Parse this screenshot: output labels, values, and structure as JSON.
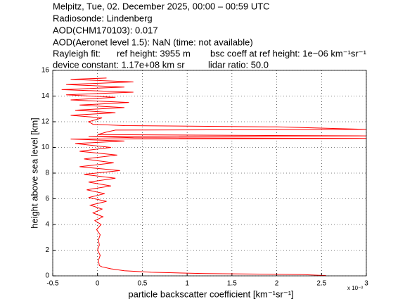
{
  "chart_data": {
    "type": "line",
    "header_lines": [
      "Melpitz, Tue, 02. December 2025, 00:00 – 00:59 UTC",
      "Radiosonde: Lindenberg",
      "AOD(CHM170103): 0.017",
      "AOD(Aeronet level 1.5): NaN   (time: not available)"
    ],
    "rayleigh_line": [
      "Rayleigh fit:",
      "ref height: 3955 m",
      "bsc coeff at ref height: 1e−06 km⁻¹sr⁻¹"
    ],
    "device_line": [
      "device constant: 1.17e+08 km sr",
      "lidar ratio: 50.0"
    ],
    "xlabel": "particle backscatter coefficient [km⁻¹sr⁻¹]",
    "ylabel": "height above sea level [km]",
    "x_multiplier": "x 10⁻³",
    "color": "#ff0000",
    "grid": true,
    "xlim": [
      -0.5,
      3
    ],
    "xticks": [
      -0.5,
      0,
      0.5,
      1,
      1.5,
      2,
      2.5,
      3
    ],
    "ylim": [
      0,
      16
    ],
    "yticks": [
      0,
      2,
      4,
      6,
      8,
      10,
      12,
      14,
      16
    ],
    "x": [
      2.55,
      2.3,
      1.2,
      0.6,
      0.3,
      0.15,
      0.05,
      0.02,
      0.01,
      0.03,
      0.0,
      0.02,
      0.01,
      0.03,
      -0.01,
      0.04,
      -0.03,
      0.06,
      -0.05,
      0.05,
      -0.08,
      0.1,
      -0.1,
      0.08,
      -0.12,
      0.15,
      -0.1,
      0.2,
      -0.15,
      0.25,
      -0.2,
      0.18,
      -0.15,
      0.22,
      -0.2,
      0.15,
      -0.25,
      0.3,
      -0.3,
      3.0,
      0.4,
      -0.1,
      3.0,
      0.0,
      0.1,
      0.2,
      3.0,
      2.0,
      0.3,
      -0.05,
      -0.1,
      0.05,
      -0.3,
      0.2,
      -0.25,
      0.3,
      -0.2,
      0.35,
      -0.3,
      0.2,
      -0.35,
      0.4,
      -0.4,
      0.3,
      -0.35,
      0.4,
      -0.3,
      0.1
    ],
    "y": [
      0.02,
      0.1,
      0.18,
      0.28,
      0.4,
      0.55,
      0.7,
      0.8,
      1.2,
      1.6,
      2.0,
      2.4,
      2.8,
      3.2,
      3.6,
      4.0,
      4.3,
      4.6,
      4.9,
      5.2,
      5.5,
      5.8,
      6.1,
      6.4,
      6.7,
      7.0,
      7.3,
      7.6,
      7.9,
      8.2,
      8.5,
      8.8,
      9.1,
      9.4,
      9.7,
      10.0,
      10.3,
      10.5,
      10.65,
      10.7,
      10.75,
      10.85,
      10.9,
      11.0,
      11.2,
      11.35,
      11.4,
      11.6,
      11.7,
      11.8,
      12.0,
      12.3,
      12.5,
      12.7,
      12.9,
      13.1,
      13.3,
      13.5,
      13.7,
      13.9,
      14.1,
      14.3,
      14.5,
      14.7,
      14.9,
      15.1,
      15.3,
      15.4
    ]
  }
}
